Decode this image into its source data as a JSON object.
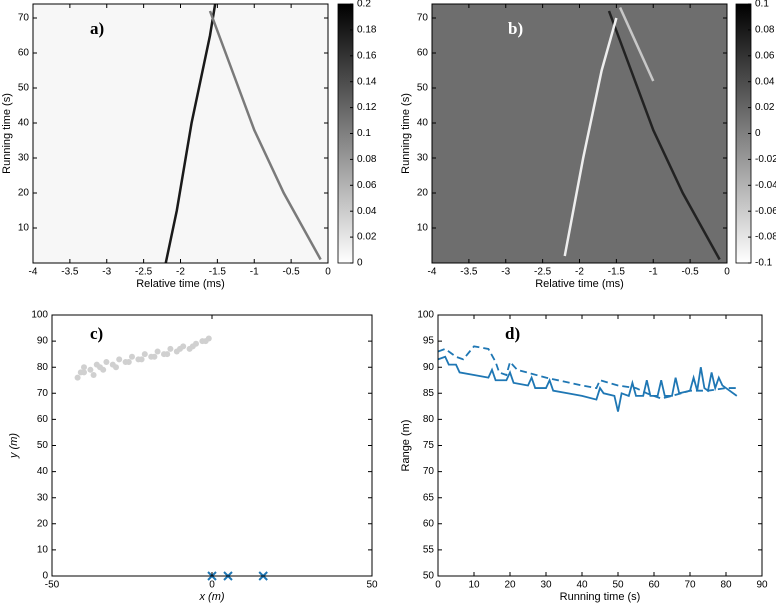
{
  "chart_data": [
    {
      "type": "heatmap",
      "title": "a)",
      "xlabel": "Relative time (ms)",
      "ylabel": "Running time (s)",
      "xlim": [
        -4,
        0
      ],
      "xticks": [
        -4,
        -3.5,
        -3,
        -2.5,
        -2,
        -1.5,
        -1,
        -0.5,
        0
      ],
      "ylim": [
        0,
        74
      ],
      "yticks": [
        10,
        20,
        30,
        40,
        50,
        60,
        70
      ],
      "background": "#f7f7f7",
      "colormap": [
        "#ffffff",
        "#000000"
      ],
      "clim": [
        0,
        0.2
      ],
      "cticks": [
        0,
        0.02,
        0.04,
        0.06,
        0.08,
        0.1,
        0.12,
        0.14,
        0.16,
        0.18,
        0.2
      ],
      "series": [
        {
          "color": "#1a1a1a",
          "x": [
            -2.2,
            -2.05,
            -1.85,
            -1.6,
            -1.53
          ],
          "y": [
            0,
            15,
            40,
            65,
            74
          ]
        },
        {
          "color": "#7a7a7a",
          "x": [
            -1.6,
            -1.3,
            -1,
            -0.6,
            -0.1
          ],
          "y": [
            72,
            55,
            38,
            20,
            1
          ]
        }
      ]
    },
    {
      "type": "heatmap",
      "title": "b)",
      "xlabel": "Relative time (ms)",
      "ylabel": "Running time (s)",
      "xlim": [
        -4,
        0
      ],
      "xticks": [
        -4,
        -3.5,
        -3,
        -2.5,
        -2,
        -1.5,
        -1,
        -0.5,
        0
      ],
      "ylim": [
        0,
        74
      ],
      "yticks": [
        10,
        20,
        30,
        40,
        50,
        60,
        70
      ],
      "background": "#6e6e6e",
      "colormap": [
        "#ffffff",
        "#000000"
      ],
      "clim": [
        -0.1,
        0.1
      ],
      "cticks": [
        -0.1,
        -0.08,
        -0.06,
        -0.04,
        -0.02,
        0,
        0.02,
        0.04,
        0.06,
        0.08,
        0.1
      ],
      "series": [
        {
          "color": "#222222",
          "x": [
            -1.6,
            -1.3,
            -1,
            -0.6,
            -0.1
          ],
          "y": [
            72,
            55,
            38,
            20,
            1
          ]
        },
        {
          "color": "#eeeeee",
          "x": [
            -2.2,
            -1.95,
            -1.7,
            -1.5
          ],
          "y": [
            2,
            30,
            55,
            70
          ]
        },
        {
          "color": "#c8c8c8",
          "x": [
            -1.45,
            -1.0
          ],
          "y": [
            73,
            52
          ]
        }
      ]
    },
    {
      "type": "scatter",
      "title": "c)",
      "xlabel": "x (m)",
      "ylabel": "y (m)",
      "xlim": [
        -50,
        50
      ],
      "xticks": [
        -50,
        0,
        50
      ],
      "ylim": [
        0,
        100
      ],
      "yticks": [
        0,
        10,
        20,
        30,
        40,
        50,
        60,
        70,
        80,
        90,
        100
      ],
      "series": [
        {
          "color": "#d0d0d0",
          "marker": "circle",
          "x": [
            -42,
            -41,
            -40,
            -38,
            -36,
            -35,
            -33,
            -31,
            -29,
            -27,
            -25,
            -23,
            -21,
            -19,
            -17,
            -15,
            -13,
            -11,
            -9,
            -7,
            -5,
            -3,
            -1,
            -40,
            -37,
            -34,
            -30,
            -26,
            -22,
            -18,
            -14,
            -10,
            -6,
            -2
          ],
          "y": [
            76,
            78,
            80,
            79,
            81,
            80,
            82,
            81,
            83,
            82,
            84,
            83,
            85,
            84,
            86,
            85,
            87,
            86,
            88,
            87,
            89,
            90,
            91,
            78,
            77,
            79,
            80,
            82,
            83,
            84,
            85,
            87,
            88,
            90
          ]
        },
        {
          "color": "#1f77b4",
          "marker": "x",
          "x": [
            0,
            5,
            16
          ],
          "y": [
            0,
            0,
            0
          ]
        }
      ]
    },
    {
      "type": "line",
      "title": "d)",
      "xlabel": "Running time (s)",
      "ylabel": "Range (m)",
      "xlim": [
        0,
        90
      ],
      "xticks": [
        0,
        10,
        20,
        30,
        40,
        50,
        60,
        70,
        80,
        90
      ],
      "ylim": [
        50,
        100
      ],
      "yticks": [
        50,
        55,
        60,
        65,
        70,
        75,
        80,
        85,
        90,
        95,
        100
      ],
      "series": [
        {
          "color": "#1f77b4",
          "linestyle": "solid",
          "x": [
            0,
            2,
            3,
            5,
            6,
            10,
            14,
            15,
            16,
            19,
            20,
            21,
            25,
            26,
            27,
            30,
            31,
            32,
            36,
            40,
            44,
            45,
            46,
            49,
            50,
            51,
            53,
            54,
            55,
            57,
            58,
            59,
            61,
            62,
            63,
            65,
            66,
            67,
            70,
            71,
            72,
            73,
            74,
            75,
            76,
            77,
            78,
            79,
            80,
            83
          ],
          "values": [
            91.5,
            92,
            90.5,
            90.5,
            89,
            88.5,
            88,
            89.5,
            87.5,
            87.5,
            89,
            87,
            86.5,
            88,
            86,
            86,
            87.5,
            85.5,
            85,
            84.5,
            83.8,
            86,
            85,
            84.5,
            81.5,
            85,
            84.5,
            87,
            84.5,
            84.5,
            87.5,
            84.5,
            84.5,
            87.5,
            84.5,
            84.5,
            88,
            85,
            85.5,
            88,
            85.5,
            90,
            86,
            85.5,
            89,
            86,
            88,
            86.5,
            86,
            84.5
          ]
        },
        {
          "color": "#1f77b4",
          "linestyle": "dashed",
          "x": [
            0,
            2,
            5,
            7,
            10,
            14,
            16,
            17,
            19,
            20,
            22,
            30,
            40,
            44,
            45,
            50,
            55,
            58,
            62,
            65,
            70,
            75,
            80,
            83
          ],
          "values": [
            93,
            93.5,
            92,
            91.5,
            94,
            93.5,
            91,
            89,
            88.5,
            91,
            89.5,
            88,
            86.5,
            86,
            87.5,
            86.5,
            86,
            85,
            84,
            84.5,
            85.5,
            85.5,
            86,
            86
          ]
        }
      ]
    }
  ]
}
